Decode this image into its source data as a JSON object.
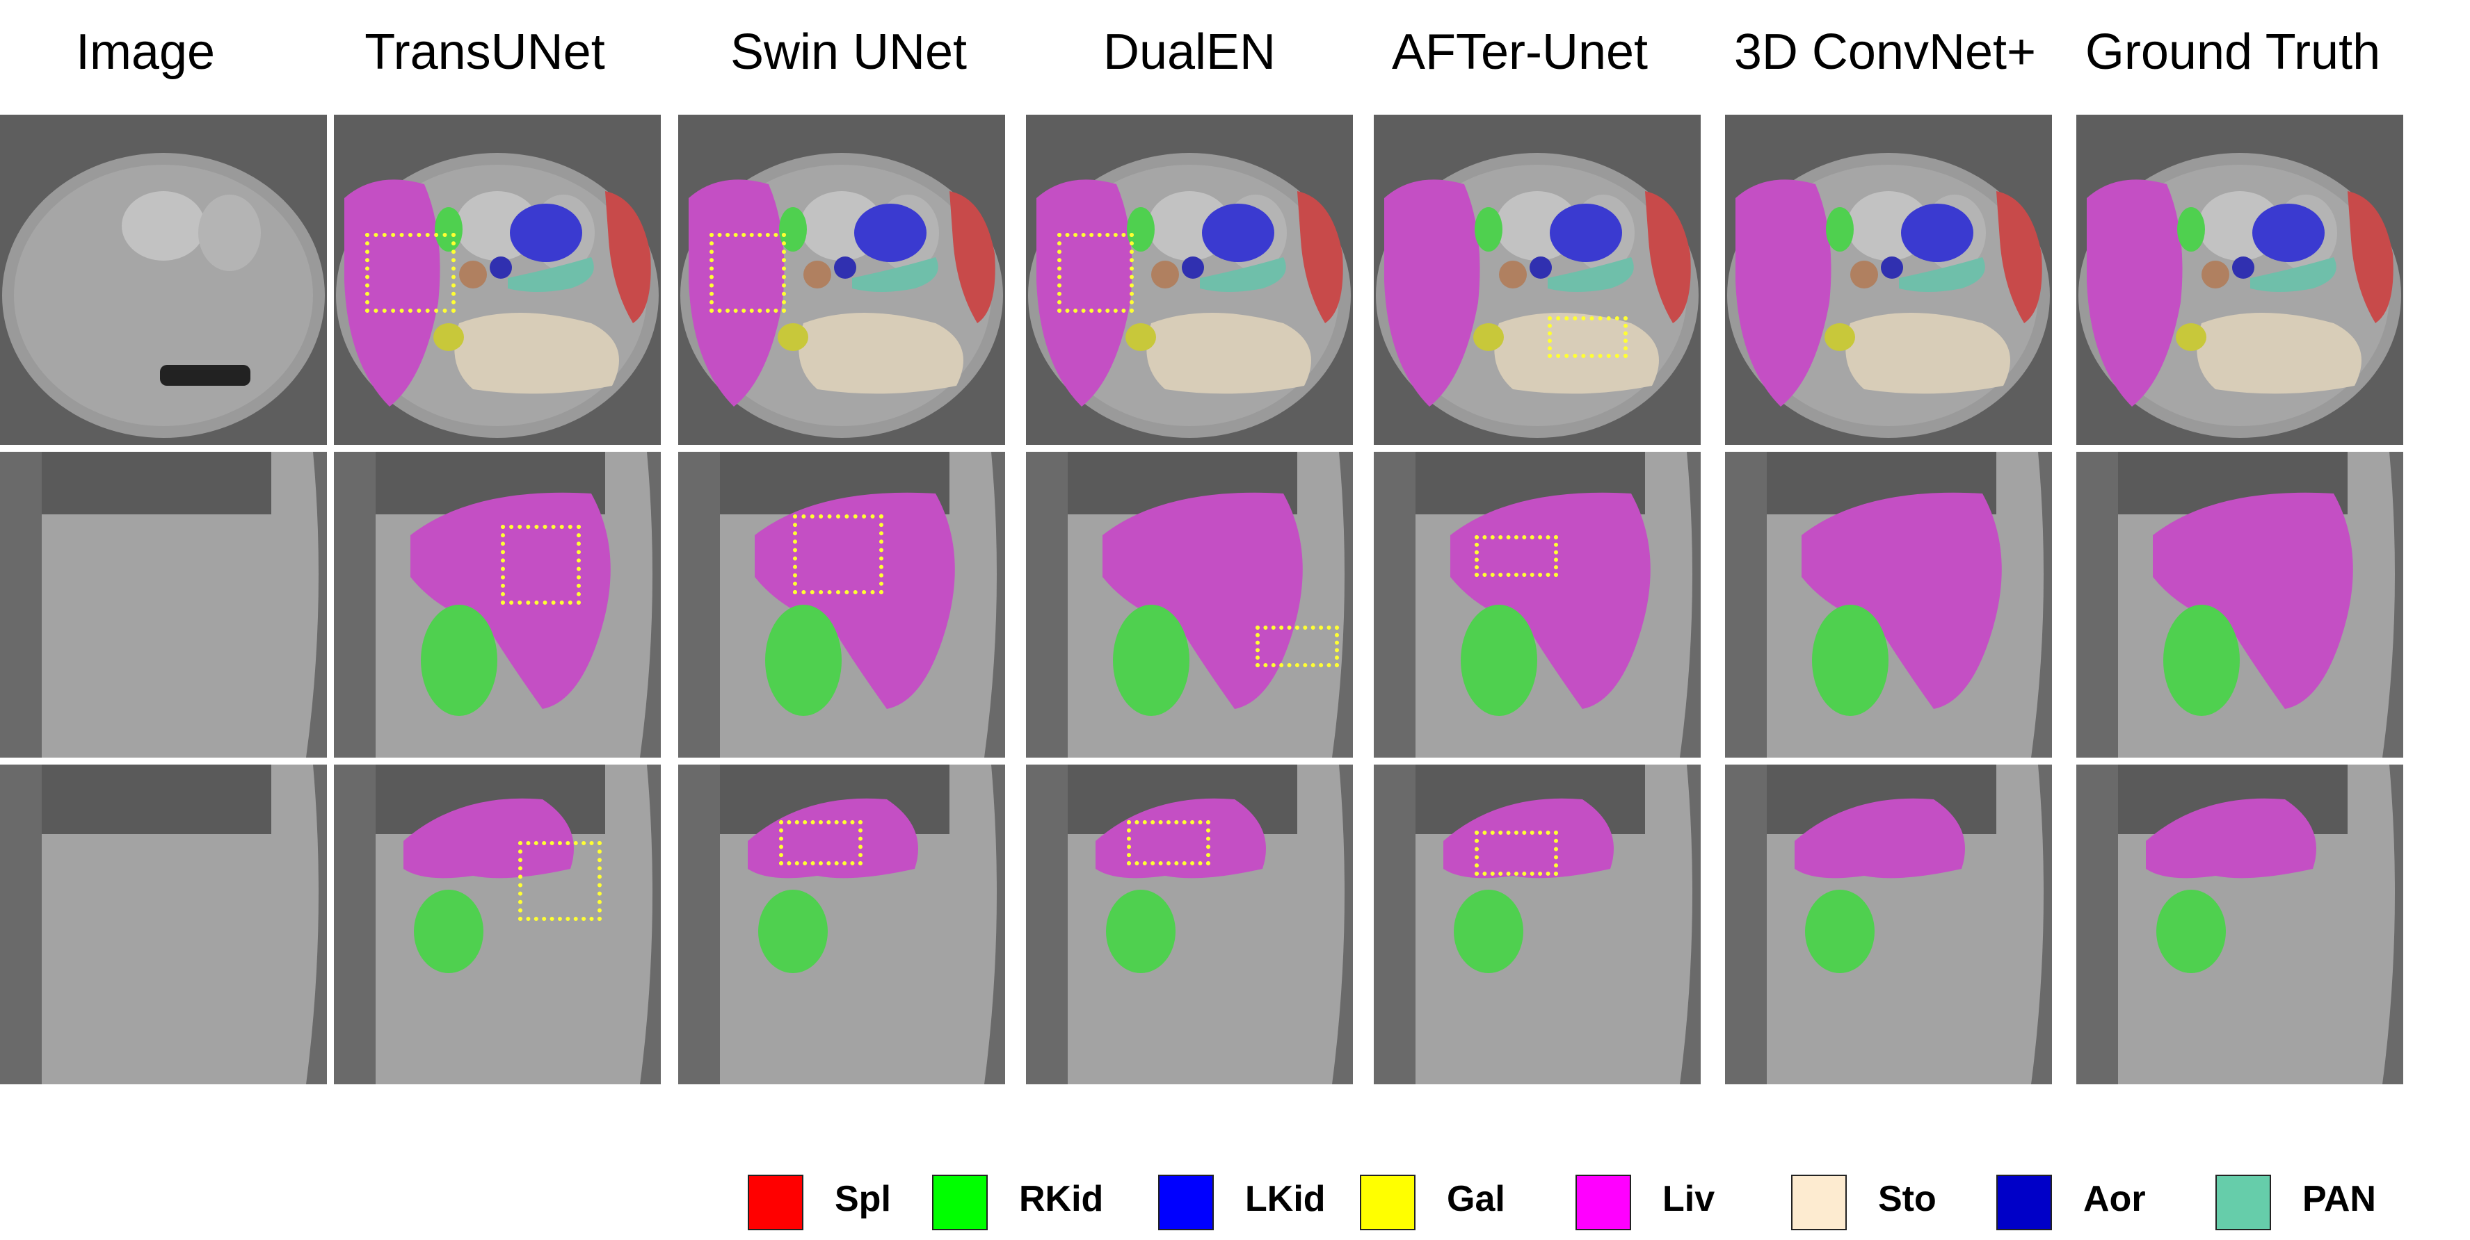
{
  "columns": [
    "Image",
    "TransUNet",
    "Swin UNet",
    "DualEN",
    "AFTer-Unet",
    "3D ConvNet+",
    "Ground Truth"
  ],
  "legend": [
    {
      "label": "Spl",
      "color": "#ff0000"
    },
    {
      "label": "RKid",
      "color": "#00ff00"
    },
    {
      "label": "LKid",
      "color": "#0000ff"
    },
    {
      "label": "Gal",
      "color": "#ffff00"
    },
    {
      "label": "Liv",
      "color": "#ff00ff"
    },
    {
      "label": "Sto",
      "color": "#fdebd0"
    },
    {
      "label": "Aor",
      "color": "#0000c8"
    },
    {
      "label": "PAN",
      "color": "#66cdaa"
    }
  ],
  "overlay_colors": {
    "spleen": "#c84a4a",
    "right_kidney": "#4fd04f",
    "left_kidney": "#3a3ad0",
    "gallbladder": "#c8c83a",
    "liver": "#c44fc4",
    "stomach": "#d8cdb8",
    "aorta": "#3030b0",
    "pancreas": "#6fbfaa",
    "highlight_box": "#ffff33"
  }
}
